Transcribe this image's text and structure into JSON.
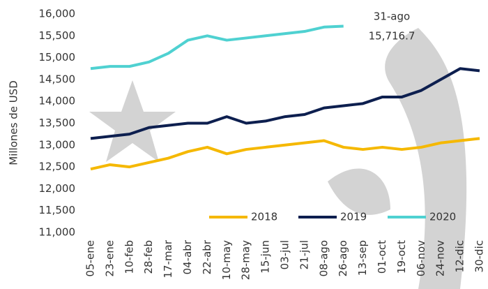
{
  "chart_data": {
    "type": "line",
    "y_label": "Millones de USD",
    "categories": [
      "05-ene",
      "23-ene",
      "10-feb",
      "28-feb",
      "17-mar",
      "04-abr",
      "22-abr",
      "10-may",
      "28-may",
      "15-jun",
      "03-jul",
      "21-jul",
      "08-ago",
      "26-ago",
      "13-sep",
      "01-oct",
      "19-oct",
      "06-nov",
      "24-nov",
      "12-dic",
      "30-dic"
    ],
    "series": [
      {
        "name": "2018",
        "color": "#f5b800",
        "values": [
          12450,
          12550,
          12500,
          12600,
          12700,
          12850,
          12950,
          12800,
          12900,
          12950,
          13000,
          13050,
          13100,
          12950,
          12900,
          12950,
          12900,
          12950,
          13050,
          13100,
          13150
        ]
      },
      {
        "name": "2019",
        "color": "#0d1f4f",
        "values": [
          13150,
          13200,
          13250,
          13400,
          13450,
          13500,
          13500,
          13650,
          13500,
          13550,
          13650,
          13700,
          13850,
          13900,
          13950,
          14100,
          14100,
          14250,
          14500,
          14750,
          14700
        ]
      },
      {
        "name": "2020",
        "color": "#4fd1d1",
        "values": [
          14750,
          14800,
          14800,
          14900,
          15100,
          15400,
          15500,
          15400,
          15450,
          15500,
          15550,
          15600,
          15700,
          15720,
          null,
          null,
          null,
          null,
          null,
          null,
          null
        ]
      }
    ],
    "annotations": [
      "31-ago",
      "15,716.7"
    ],
    "ylim": [
      11000,
      16000
    ],
    "yticks": [
      {
        "value": 11000,
        "label": "11,000"
      },
      {
        "value": 11500,
        "label": "11,500"
      },
      {
        "value": 12000,
        "label": "12,000"
      },
      {
        "value": 12500,
        "label": "12,500"
      },
      {
        "value": 13000,
        "label": "13,000"
      },
      {
        "value": 13500,
        "label": "13,500"
      },
      {
        "value": 14000,
        "label": "14,000"
      },
      {
        "value": 14500,
        "label": "14,500"
      },
      {
        "value": 15000,
        "label": "15,000"
      },
      {
        "value": 15500,
        "label": "15,500"
      },
      {
        "value": 16000,
        "label": "16,000"
      }
    ],
    "legend": "bottom-right"
  }
}
